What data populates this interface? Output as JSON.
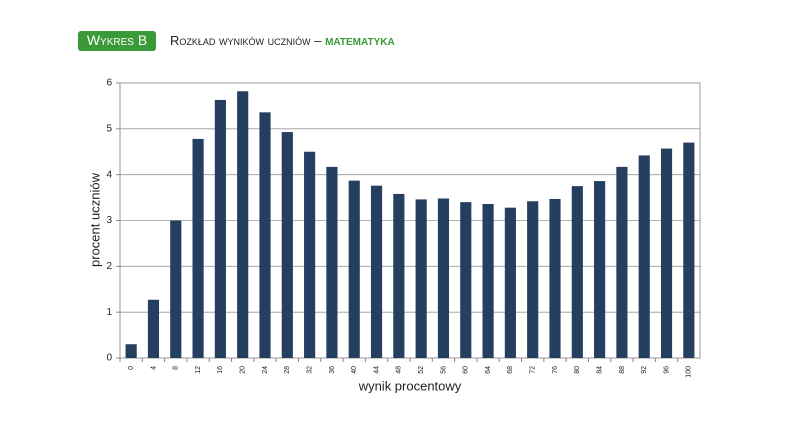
{
  "chart_data": {
    "type": "bar",
    "badge": "Wykres B",
    "title": "Rozkład wyników uczniów –",
    "subject": "Matematyka",
    "x_label": "wynik procentowy",
    "y_label": "procent uczniów",
    "categories": [
      "0",
      "4",
      "8",
      "12",
      "16",
      "20",
      "24",
      "28",
      "32",
      "36",
      "40",
      "44",
      "48",
      "52",
      "56",
      "60",
      "64",
      "68",
      "72",
      "76",
      "80",
      "84",
      "88",
      "92",
      "96",
      "100"
    ],
    "values": [
      0.3,
      1.27,
      3.0,
      4.78,
      5.63,
      5.82,
      5.36,
      4.93,
      4.5,
      4.17,
      3.87,
      3.76,
      3.58,
      3.46,
      3.48,
      3.4,
      3.36,
      3.28,
      3.42,
      3.47,
      3.75,
      3.86,
      4.17,
      4.42,
      4.57,
      4.7
    ],
    "color": "#243f60",
    "ylim": [
      0,
      6
    ],
    "yticks": [
      0,
      1,
      2,
      3,
      4,
      5,
      6
    ],
    "grid": true
  }
}
